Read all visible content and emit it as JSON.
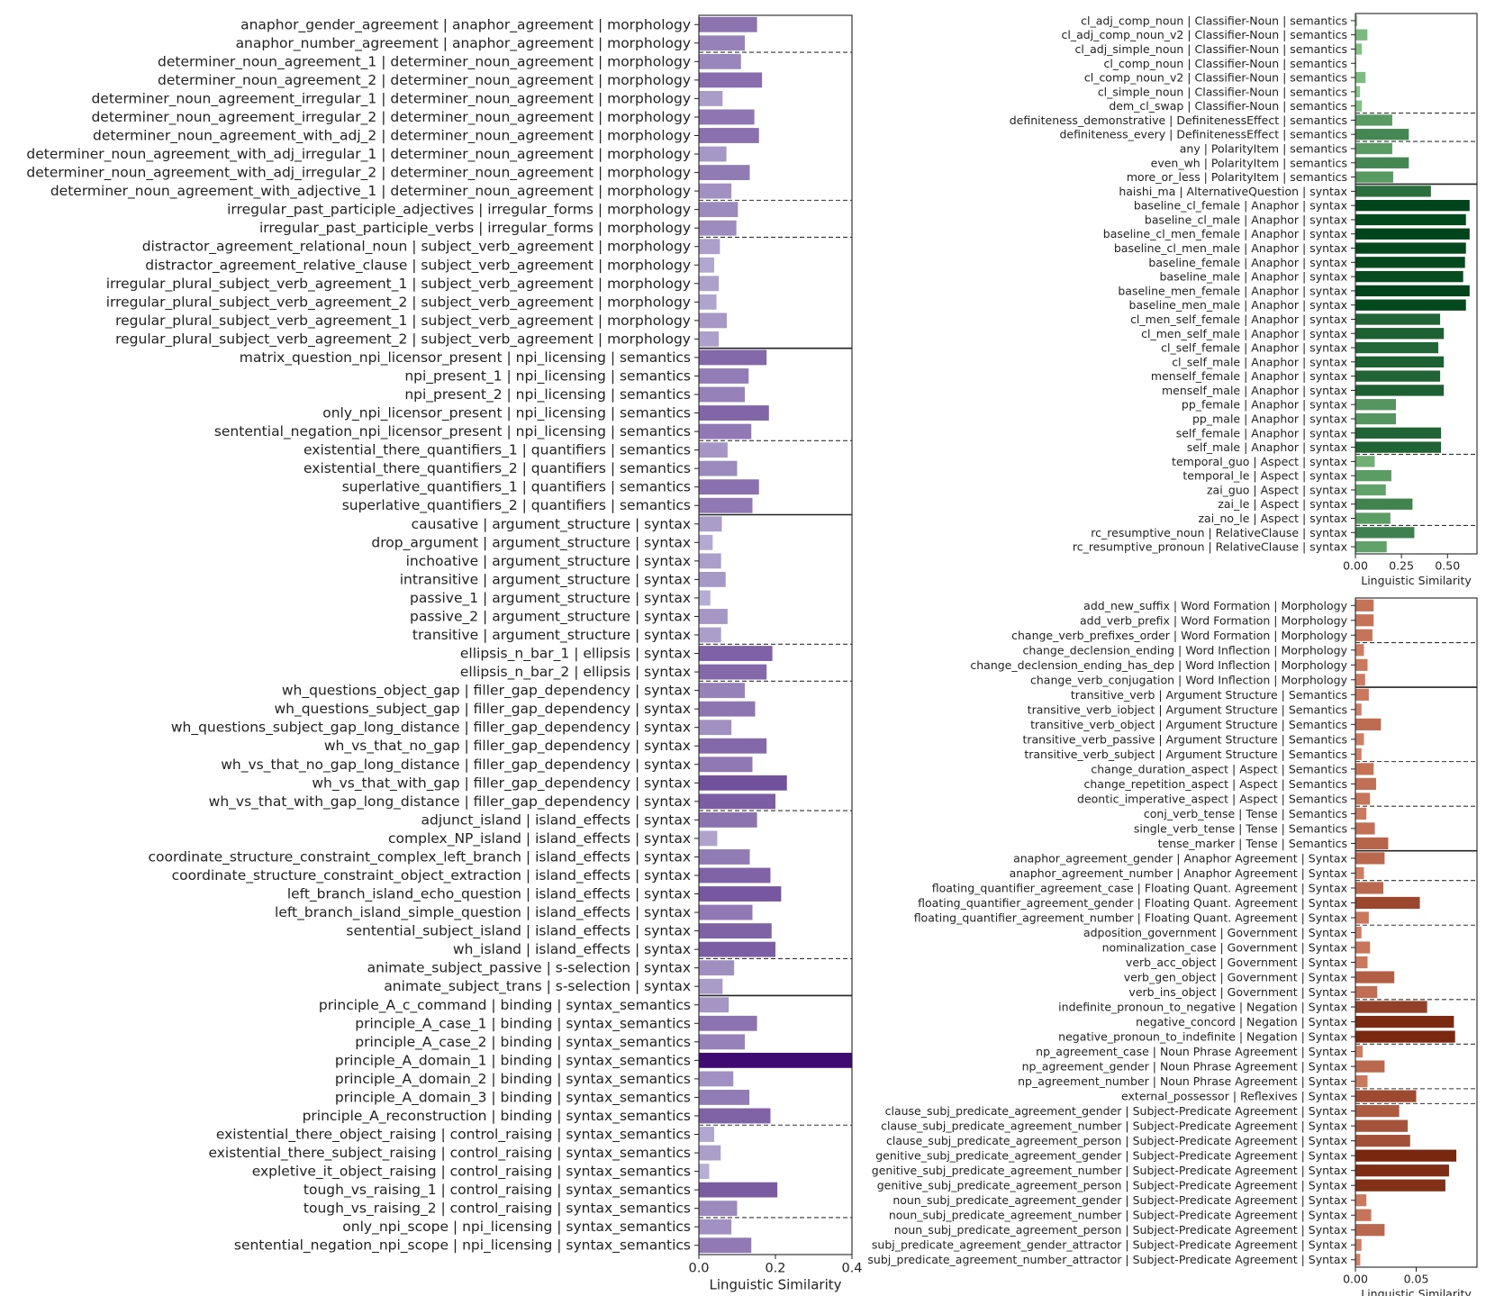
{
  "chart_data": [
    {
      "type": "bar",
      "orientation": "horizontal",
      "panel": "left",
      "xlabel": "Linguistic Similarity",
      "xlim": [
        0,
        0.4
      ],
      "xticks": [
        0.0,
        0.2,
        0.4
      ],
      "xtick_labels": [
        "0.0",
        "0.2",
        "0.4"
      ],
      "categories": [
        "anaphor_gender_agreement | anaphor_agreement | morphology",
        "anaphor_number_agreement | anaphor_agreement | morphology",
        "determiner_noun_agreement_1 | determiner_noun_agreement | morphology",
        "determiner_noun_agreement_2 | determiner_noun_agreement | morphology",
        "determiner_noun_agreement_irregular_1 | determiner_noun_agreement | morphology",
        "determiner_noun_agreement_irregular_2 | determiner_noun_agreement | morphology",
        "determiner_noun_agreement_with_adj_2 | determiner_noun_agreement | morphology",
        "determiner_noun_agreement_with_adj_irregular_1 | determiner_noun_agreement | morphology",
        "determiner_noun_agreement_with_adj_irregular_2 | determiner_noun_agreement | morphology",
        "determiner_noun_agreement_with_adjective_1 | determiner_noun_agreement | morphology",
        "irregular_past_participle_adjectives | irregular_forms | morphology",
        "irregular_past_participle_verbs | irregular_forms | morphology",
        "distractor_agreement_relational_noun | subject_verb_agreement | morphology",
        "distractor_agreement_relative_clause | subject_verb_agreement | morphology",
        "irregular_plural_subject_verb_agreement_1 | subject_verb_agreement | morphology",
        "irregular_plural_subject_verb_agreement_2 | subject_verb_agreement | morphology",
        "regular_plural_subject_verb_agreement_1 | subject_verb_agreement | morphology",
        "regular_plural_subject_verb_agreement_2 | subject_verb_agreement | morphology",
        "matrix_question_npi_licensor_present | npi_licensing | semantics",
        "npi_present_1 | npi_licensing | semantics",
        "npi_present_2 | npi_licensing | semantics",
        "only_npi_licensor_present | npi_licensing | semantics",
        "sentential_negation_npi_licensor_present | npi_licensing | semantics",
        "existential_there_quantifiers_1 | quantifiers | semantics",
        "existential_there_quantifiers_2 | quantifiers | semantics",
        "superlative_quantifiers_1 | quantifiers | semantics",
        "superlative_quantifiers_2 | quantifiers | semantics",
        "causative | argument_structure | syntax",
        "drop_argument | argument_structure | syntax",
        "inchoative | argument_structure | syntax",
        "intransitive | argument_structure | syntax",
        "passive_1 | argument_structure | syntax",
        "passive_2 | argument_structure | syntax",
        "transitive | argument_structure | syntax",
        "ellipsis_n_bar_1 | ellipsis | syntax",
        "ellipsis_n_bar_2 | ellipsis | syntax",
        "wh_questions_object_gap | filler_gap_dependency | syntax",
        "wh_questions_subject_gap | filler_gap_dependency | syntax",
        "wh_questions_subject_gap_long_distance | filler_gap_dependency | syntax",
        "wh_vs_that_no_gap | filler_gap_dependency | syntax",
        "wh_vs_that_no_gap_long_distance | filler_gap_dependency | syntax",
        "wh_vs_that_with_gap | filler_gap_dependency | syntax",
        "wh_vs_that_with_gap_long_distance | filler_gap_dependency | syntax",
        "adjunct_island | island_effects | syntax",
        "complex_NP_island | island_effects | syntax",
        "coordinate_structure_constraint_complex_left_branch | island_effects | syntax",
        "coordinate_structure_constraint_object_extraction | island_effects | syntax",
        "left_branch_island_echo_question | island_effects | syntax",
        "left_branch_island_simple_question | island_effects | syntax",
        "sentential_subject_island | island_effects | syntax",
        "wh_island | island_effects | syntax",
        "animate_subject_passive | s-selection | syntax",
        "animate_subject_trans | s-selection | syntax",
        "principle_A_c_command | binding | syntax_semantics",
        "principle_A_case_1 | binding | syntax_semantics",
        "principle_A_case_2 | binding | syntax_semantics",
        "principle_A_domain_1 | binding | syntax_semantics",
        "principle_A_domain_2 | binding | syntax_semantics",
        "principle_A_domain_3 | binding | syntax_semantics",
        "principle_A_reconstruction | binding | syntax_semantics",
        "existential_there_object_raising | control_raising | syntax_semantics",
        "existential_there_subject_raising | control_raising | syntax_semantics",
        "expletive_it_object_raising | control_raising | syntax_semantics",
        "tough_vs_raising_1 | control_raising | syntax_semantics",
        "tough_vs_raising_2 | control_raising | syntax_semantics",
        "only_npi_scope | npi_licensing | syntax_semantics",
        "sentential_negation_npi_scope | npi_licensing | syntax_semantics"
      ],
      "values": [
        0.152,
        0.12,
        0.11,
        0.165,
        0.062,
        0.145,
        0.157,
        0.072,
        0.133,
        0.085,
        0.102,
        0.098,
        0.055,
        0.04,
        0.052,
        0.046,
        0.073,
        0.052,
        0.177,
        0.13,
        0.12,
        0.183,
        0.137,
        0.075,
        0.1,
        0.157,
        0.14,
        0.06,
        0.036,
        0.058,
        0.07,
        0.03,
        0.075,
        0.058,
        0.192,
        0.177,
        0.12,
        0.147,
        0.085,
        0.177,
        0.14,
        0.23,
        0.2,
        0.152,
        0.048,
        0.133,
        0.187,
        0.215,
        0.14,
        0.19,
        0.2,
        0.092,
        0.062,
        0.078,
        0.152,
        0.12,
        0.4,
        0.09,
        0.132,
        0.187,
        0.04,
        0.057,
        0.027,
        0.205,
        0.1,
        0.085,
        0.137
      ],
      "group_boundaries_after": [
        1,
        9,
        11
      ],
      "major_boundaries_after": [
        17,
        26,
        52
      ],
      "minor_boundaries_after": [
        22,
        33,
        35,
        42,
        50,
        59,
        64
      ],
      "palette": {
        "light": "#c2bedd",
        "dark": "#3f0a72"
      }
    },
    {
      "type": "bar",
      "orientation": "horizontal",
      "panel": "top-right",
      "xlabel": "Linguistic Similarity",
      "xlim": [
        0,
        0.66
      ],
      "xticks": [
        0.0,
        0.25,
        0.5
      ],
      "xtick_labels": [
        "0.00",
        "0.25",
        "0.50"
      ],
      "categories": [
        "cl_adj_comp_noun | Classifier-Noun | semantics",
        "cl_adj_comp_noun_v2 | Classifier-Noun | semantics",
        "cl_adj_simple_noun | Classifier-Noun | semantics",
        "cl_comp_noun | Classifier-Noun | semantics",
        "cl_comp_noun_v2 | Classifier-Noun | semantics",
        "cl_simple_noun | Classifier-Noun | semantics",
        "dem_cl_swap | Classifier-Noun | semantics",
        "definiteness_demonstrative | DefinitenessEffect | semantics",
        "definiteness_every | DefinitenessEffect | semantics",
        "any | PolarityItem | semantics",
        "even_wh | PolarityItem | semantics",
        "more_or_less | PolarityItem | semantics",
        "haishi_ma | AlternativeQuestion | syntax",
        "baseline_cl_female | Anaphor | syntax",
        "baseline_cl_male | Anaphor | syntax",
        "baseline_cl_men_female | Anaphor | syntax",
        "baseline_cl_men_male | Anaphor | syntax",
        "baseline_female | Anaphor | syntax",
        "baseline_male | Anaphor | syntax",
        "baseline_men_female | Anaphor | syntax",
        "baseline_men_male | Anaphor | syntax",
        "cl_men_self_female | Anaphor | syntax",
        "cl_men_self_male | Anaphor | syntax",
        "cl_self_female | Anaphor | syntax",
        "cl_self_male | Anaphor | syntax",
        "menself_female | Anaphor | syntax",
        "menself_male | Anaphor | syntax",
        "pp_female | Anaphor | syntax",
        "pp_male | Anaphor | syntax",
        "self_female | Anaphor | syntax",
        "self_male | Anaphor | syntax",
        "temporal_guo | Aspect | syntax",
        "temporal_le | Aspect | syntax",
        "zai_guo | Aspect | syntax",
        "zai_le | Aspect | syntax",
        "zai_no_le | Aspect | syntax",
        "rc_resumptive_noun | RelativeClause | syntax",
        "rc_resumptive_pronoun | RelativeClause | syntax"
      ],
      "values": [
        0.01,
        0.065,
        0.035,
        0.005,
        0.055,
        0.025,
        0.035,
        0.2,
        0.29,
        0.2,
        0.29,
        0.205,
        0.41,
        0.62,
        0.6,
        0.62,
        0.6,
        0.595,
        0.585,
        0.62,
        0.6,
        0.46,
        0.48,
        0.45,
        0.48,
        0.46,
        0.48,
        0.22,
        0.22,
        0.465,
        0.465,
        0.105,
        0.195,
        0.165,
        0.31,
        0.19,
        0.32,
        0.17
      ],
      "major_boundaries_after": [
        11
      ],
      "minor_boundaries_after": [
        6,
        8,
        30,
        35
      ],
      "palette": {
        "light": "#8ccc8c",
        "dark": "#00441b"
      }
    },
    {
      "type": "bar",
      "orientation": "horizontal",
      "panel": "bottom-right",
      "xlabel": "Linguistic Similarity",
      "xlim": [
        0,
        0.1
      ],
      "xticks": [
        0.0,
        0.05
      ],
      "xtick_labels": [
        "0.00",
        "0.05"
      ],
      "categories": [
        "add_new_suffix | Word Formation | Morphology",
        "add_verb_prefix | Word Formation | Morphology",
        "change_verb_prefixes_order | Word Formation | Morphology",
        "change_declension_ending | Word Inflection | Morphology",
        "change_declension_ending_has_dep | Word Inflection | Morphology",
        "change_verb_conjugation | Word Inflection | Morphology",
        "transitive_verb | Argument Structure | Semantics",
        "transitive_verb_iobject | Argument Structure | Semantics",
        "transitive_verb_object | Argument Structure | Semantics",
        "transitive_verb_passive | Argument Structure | Semantics",
        "transitive_verb_subject | Argument Structure | Semantics",
        "change_duration_aspect | Aspect | Semantics",
        "change_repetition_aspect | Aspect | Semantics",
        "deontic_imperative_aspect | Aspect | Semantics",
        "conj_verb_tense | Tense | Semantics",
        "single_verb_tense | Tense | Semantics",
        "tense_marker | Tense | Semantics",
        "anaphor_agreement_gender | Anaphor Agreement | Syntax",
        "anaphor_agreement_number | Anaphor Agreement | Syntax",
        "floating_quantifier_agreement_case | Floating Quant. Agreement | Syntax",
        "floating_quantifier_agreement_gender | Floating Quant. Agreement | Syntax",
        "floating_quantifier_agreement_number | Floating Quant. Agreement | Syntax",
        "adposition_government | Government | Syntax",
        "nominalization_case | Government | Syntax",
        "verb_acc_object | Government | Syntax",
        "verb_gen_object | Government | Syntax",
        "verb_ins_object | Government | Syntax",
        "indefinite_pronoun_to_negative | Negation | Syntax",
        "negative_concord | Negation | Syntax",
        "negative_pronoun_to_indefinite | Negation | Syntax",
        "np_agreement_case | Noun Phrase Agreement | Syntax",
        "np_agreement_gender | Noun Phrase Agreement | Syntax",
        "np_agreement_number | Noun Phrase Agreement | Syntax",
        "external_possessor | Reflexives | Syntax",
        "clause_subj_predicate_agreement_gender | Subject-Predicate Agreement | Syntax",
        "clause_subj_predicate_agreement_number | Subject-Predicate Agreement | Syntax",
        "clause_subj_predicate_agreement_person | Subject-Predicate Agreement | Syntax",
        "genitive_subj_predicate_agreement_gender | Subject-Predicate Agreement | Syntax",
        "genitive_subj_predicate_agreement_number | Subject-Predicate Agreement | Syntax",
        "genitive_subj_predicate_agreement_person | Subject-Predicate Agreement | Syntax",
        "noun_subj_predicate_agreement_gender | Subject-Predicate Agreement | Syntax",
        "noun_subj_predicate_agreement_number | Subject-Predicate Agreement | Syntax",
        "noun_subj_predicate_agreement_person | Subject-Predicate Agreement | Syntax",
        "subj_predicate_agreement_gender_attractor | Subject-Predicate Agreement | Syntax",
        "subj_predicate_agreement_number_attractor | Subject-Predicate Agreement | Syntax"
      ],
      "values": [
        0.015,
        0.015,
        0.014,
        0.007,
        0.01,
        0.008,
        0.011,
        0.005,
        0.021,
        0.007,
        0.005,
        0.015,
        0.017,
        0.012,
        0.009,
        0.016,
        0.027,
        0.024,
        0.007,
        0.023,
        0.053,
        0.011,
        0.005,
        0.012,
        0.01,
        0.032,
        0.018,
        0.059,
        0.081,
        0.082,
        0.006,
        0.024,
        0.01,
        0.05,
        0.036,
        0.043,
        0.045,
        0.083,
        0.077,
        0.074,
        0.009,
        0.013,
        0.024,
        0.005,
        0.004
      ],
      "major_boundaries_after": [
        5,
        16
      ],
      "minor_boundaries_after": [
        2,
        10,
        13,
        18,
        21,
        26,
        29,
        32,
        33
      ],
      "palette": {
        "light": "#d9876b",
        "dark": "#7a2710"
      }
    }
  ]
}
